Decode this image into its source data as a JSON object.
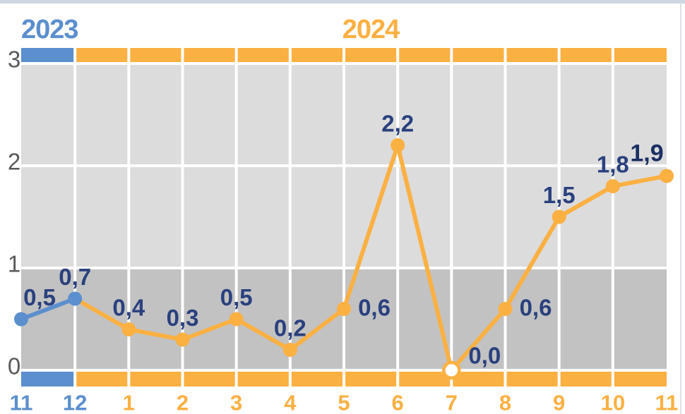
{
  "page": {
    "background": "#ffffff",
    "top_strip_color": "#cdd7e3",
    "right_edge_color": "#dde0e5"
  },
  "chart_data": {
    "type": "line",
    "categories": [
      "11",
      "12",
      "1",
      "2",
      "3",
      "4",
      "5",
      "6",
      "7",
      "8",
      "9",
      "10",
      "11"
    ],
    "values": [
      0.5,
      0.7,
      0.4,
      0.3,
      0.5,
      0.2,
      0.6,
      2.2,
      0,
      0.6,
      1.5,
      1.8,
      1.9
    ],
    "category_group": [
      0,
      0,
      1,
      1,
      1,
      1,
      1,
      1,
      1,
      1,
      1,
      1,
      1
    ],
    "groups": [
      {
        "label": "2023",
        "color": "#5b8fce"
      },
      {
        "label": "2024",
        "color": "#fbb042"
      }
    ],
    "point_labels": [
      {
        "text": "0,5",
        "placement": "above-right"
      },
      {
        "text": "0,7",
        "placement": "above"
      },
      {
        "text": "0,4",
        "placement": "above"
      },
      {
        "text": "0,3",
        "placement": "above"
      },
      {
        "text": "0,5",
        "placement": "above"
      },
      {
        "text": "0,2",
        "placement": "above"
      },
      {
        "text": "0,6",
        "placement": "right"
      },
      {
        "text": "2,2",
        "placement": "above"
      },
      {
        "text": "0,0",
        "placement": "right-above",
        "marker": "open"
      },
      {
        "text": "0,6",
        "placement": "right"
      },
      {
        "text": "1,5",
        "placement": "above"
      },
      {
        "text": "1,8",
        "placement": "above"
      },
      {
        "text": "1,9",
        "placement": "above-left",
        "emphasis": true
      }
    ],
    "ylim": [
      0,
      3
    ],
    "yticks": [
      0,
      1,
      2,
      3
    ],
    "grid": true,
    "legend": "none",
    "decimal_separator": ",",
    "colors": {
      "band_upper": "#dcdcdc",
      "band_lower": "#c2c2c2",
      "gridline": "#ffffff",
      "label": "#2a407e",
      "label_emphasis": "#1c2f63",
      "ytick": "#595959"
    }
  }
}
